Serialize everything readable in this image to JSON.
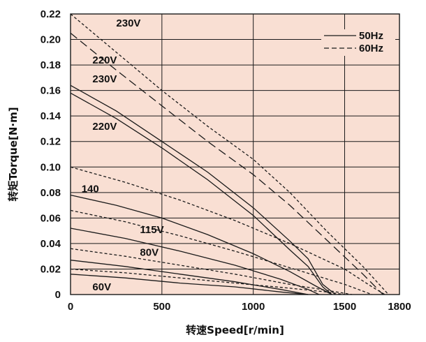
{
  "colors": {
    "plot_bg": "#f9dfd3",
    "grid": "#1a1a1a",
    "curve": "#1a1a1a"
  },
  "chart_data": {
    "type": "line",
    "xlabel": "转速Speed[r/min]",
    "ylabel": "转矩Torque[N·m]",
    "xlim": [
      0,
      1800
    ],
    "ylim": [
      0,
      0.22
    ],
    "x_ticks": [
      "0",
      "500",
      "1000",
      "1500",
      "1800"
    ],
    "y_ticks": [
      "0",
      "0.02",
      "0.04",
      "0.06",
      "0.08",
      "0.10",
      "0.12",
      "0.14",
      "0.16",
      "0.18",
      "0.20",
      "0.22"
    ],
    "grid": true,
    "legend_position": "top-right",
    "legend": [
      {
        "label": "50Hz",
        "style": "solid"
      },
      {
        "label": "60Hz",
        "style": "dashed"
      }
    ],
    "series": [
      {
        "style": "dashed-short",
        "frequency": "60Hz",
        "points": [
          [
            0,
            0.22
          ],
          [
            250,
            0.19
          ],
          [
            500,
            0.16
          ],
          [
            750,
            0.132
          ],
          [
            1000,
            0.106
          ],
          [
            1200,
            0.08
          ],
          [
            1400,
            0.05
          ],
          [
            1600,
            0.022
          ],
          [
            1740,
            0.0
          ]
        ]
      },
      {
        "style": "dashed-long",
        "frequency": "60Hz",
        "points": [
          [
            0,
            0.205
          ],
          [
            250,
            0.176
          ],
          [
            500,
            0.148
          ],
          [
            750,
            0.12
          ],
          [
            1000,
            0.094
          ],
          [
            1200,
            0.07
          ],
          [
            1400,
            0.043
          ],
          [
            1600,
            0.016
          ],
          [
            1710,
            0.0
          ]
        ]
      },
      {
        "style": "solid",
        "frequency": "50Hz",
        "points": [
          [
            0,
            0.164
          ],
          [
            250,
            0.144
          ],
          [
            500,
            0.12
          ],
          [
            750,
            0.096
          ],
          [
            1000,
            0.068
          ],
          [
            1200,
            0.042
          ],
          [
            1300,
            0.028
          ],
          [
            1380,
            0.008
          ],
          [
            1450,
            0.0
          ]
        ]
      },
      {
        "style": "solid",
        "frequency": "50Hz",
        "points": [
          [
            0,
            0.158
          ],
          [
            250,
            0.138
          ],
          [
            500,
            0.115
          ],
          [
            750,
            0.09
          ],
          [
            1000,
            0.062
          ],
          [
            1200,
            0.035
          ],
          [
            1300,
            0.022
          ],
          [
            1380,
            0.006
          ],
          [
            1430,
            0.0
          ]
        ]
      },
      {
        "style": "dashed-short",
        "frequency": "60Hz",
        "points": [
          [
            0,
            0.1
          ],
          [
            300,
            0.088
          ],
          [
            600,
            0.074
          ],
          [
            900,
            0.058
          ],
          [
            1200,
            0.04
          ],
          [
            1500,
            0.02
          ],
          [
            1650,
            0.006
          ],
          [
            1720,
            0.0
          ]
        ]
      },
      {
        "style": "solid",
        "frequency": "50Hz",
        "points": [
          [
            0,
            0.078
          ],
          [
            250,
            0.07
          ],
          [
            500,
            0.06
          ],
          [
            750,
            0.047
          ],
          [
            1000,
            0.032
          ],
          [
            1200,
            0.018
          ],
          [
            1350,
            0.006
          ],
          [
            1430,
            0.0
          ]
        ]
      },
      {
        "style": "dashed-short",
        "frequency": "60Hz",
        "points": [
          [
            0,
            0.066
          ],
          [
            300,
            0.057
          ],
          [
            600,
            0.046
          ],
          [
            900,
            0.034
          ],
          [
            1200,
            0.021
          ],
          [
            1500,
            0.008
          ],
          [
            1650,
            0.0
          ]
        ]
      },
      {
        "style": "solid",
        "frequency": "50Hz",
        "points": [
          [
            0,
            0.052
          ],
          [
            300,
            0.044
          ],
          [
            600,
            0.034
          ],
          [
            900,
            0.023
          ],
          [
            1150,
            0.012
          ],
          [
            1300,
            0.004
          ],
          [
            1360,
            0.0
          ]
        ]
      },
      {
        "style": "dashed-short",
        "frequency": "60Hz",
        "points": [
          [
            0,
            0.036
          ],
          [
            300,
            0.03
          ],
          [
            600,
            0.023
          ],
          [
            900,
            0.016
          ],
          [
            1200,
            0.008
          ],
          [
            1500,
            0.001
          ],
          [
            1540,
            0.0
          ]
        ]
      },
      {
        "style": "solid",
        "frequency": "50Hz",
        "points": [
          [
            0,
            0.027
          ],
          [
            300,
            0.022
          ],
          [
            600,
            0.016
          ],
          [
            900,
            0.01
          ],
          [
            1150,
            0.004
          ],
          [
            1300,
            0.0
          ]
        ]
      },
      {
        "style": "dashed-short",
        "frequency": "60Hz",
        "points": [
          [
            0,
            0.02
          ],
          [
            300,
            0.017
          ],
          [
            600,
            0.013
          ],
          [
            900,
            0.009
          ],
          [
            1200,
            0.005
          ],
          [
            1400,
            0.002
          ],
          [
            1500,
            0.0
          ]
        ]
      },
      {
        "style": "solid",
        "frequency": "50Hz",
        "points": [
          [
            0,
            0.016
          ],
          [
            300,
            0.013
          ],
          [
            600,
            0.009
          ],
          [
            900,
            0.006
          ],
          [
            1150,
            0.002
          ],
          [
            1300,
            0.0
          ]
        ]
      }
    ],
    "curve_labels": [
      {
        "text": "230V",
        "x": 250,
        "y": 0.213
      },
      {
        "text": "220V",
        "x": 120,
        "y": 0.184
      },
      {
        "text": "230V",
        "x": 120,
        "y": 0.169
      },
      {
        "text": "220V",
        "x": 120,
        "y": 0.132
      },
      {
        "text": "140",
        "x": 60,
        "y": 0.083
      },
      {
        "text": "115V",
        "x": 380,
        "y": 0.051
      },
      {
        "text": "80V",
        "x": 380,
        "y": 0.033
      },
      {
        "text": "60V",
        "x": 120,
        "y": 0.006
      }
    ]
  }
}
